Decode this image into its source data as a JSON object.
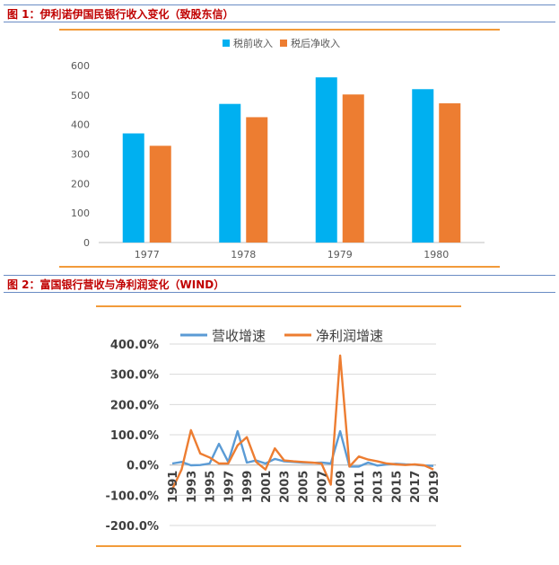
{
  "captions": {
    "fig1": "图 1：伊利诺伊国民银行收入变化（致股东信）",
    "fig2": "图 2：富国银行营收与净利润变化（WIND）"
  },
  "chart_data": [
    {
      "type": "bar",
      "categories": [
        "1977",
        "1978",
        "1979",
        "1980"
      ],
      "series": [
        {
          "name": "税前收入",
          "values": [
            370,
            470,
            560,
            520
          ],
          "color": "#00b0f0"
        },
        {
          "name": "税后净收入",
          "values": [
            328,
            425,
            502,
            472
          ],
          "color": "#ed7d31"
        }
      ],
      "ylim": [
        0,
        600
      ],
      "yticks": [
        "0",
        "100",
        "200",
        "300",
        "400",
        "500",
        "600"
      ],
      "legend": "top-center",
      "grid": false
    },
    {
      "type": "line",
      "x": [
        "1991",
        "1992",
        "1993",
        "1994",
        "1995",
        "1996",
        "1997",
        "1998",
        "1999",
        "2000",
        "2001",
        "2002",
        "2003",
        "2004",
        "2005",
        "2006",
        "2007",
        "2008",
        "2009",
        "2010",
        "2011",
        "2012",
        "2013",
        "2014",
        "2015",
        "2016",
        "2017",
        "2018",
        "2019"
      ],
      "xticks": [
        "1991",
        "1993",
        "1995",
        "1997",
        "1999",
        "2001",
        "2003",
        "2005",
        "2007",
        "2009",
        "2011",
        "2013",
        "2015",
        "2017",
        "2019"
      ],
      "series": [
        {
          "name": "营收增速",
          "color": "#5b9bd5",
          "values": [
            5,
            10,
            -1,
            0,
            5,
            70,
            10,
            112,
            8,
            15,
            5,
            20,
            12,
            10,
            8,
            7,
            8,
            5,
            112,
            -5,
            -5,
            8,
            -2,
            2,
            4,
            2,
            1,
            -2,
            -3
          ]
        },
        {
          "name": "净利润增速",
          "color": "#ed7d31",
          "values": [
            -80,
            -15,
            115,
            38,
            25,
            5,
            5,
            65,
            92,
            10,
            -15,
            55,
            15,
            12,
            10,
            8,
            5,
            -65,
            362,
            -5,
            28,
            18,
            12,
            5,
            2,
            0,
            2,
            -1,
            -15
          ]
        }
      ],
      "ylim": [
        -200,
        400
      ],
      "yticks": [
        "-200.0%",
        "-100.0%",
        "0.0%",
        "100.0%",
        "200.0%",
        "300.0%",
        "400.0%"
      ],
      "legend": "top-center",
      "grid": true
    }
  ]
}
